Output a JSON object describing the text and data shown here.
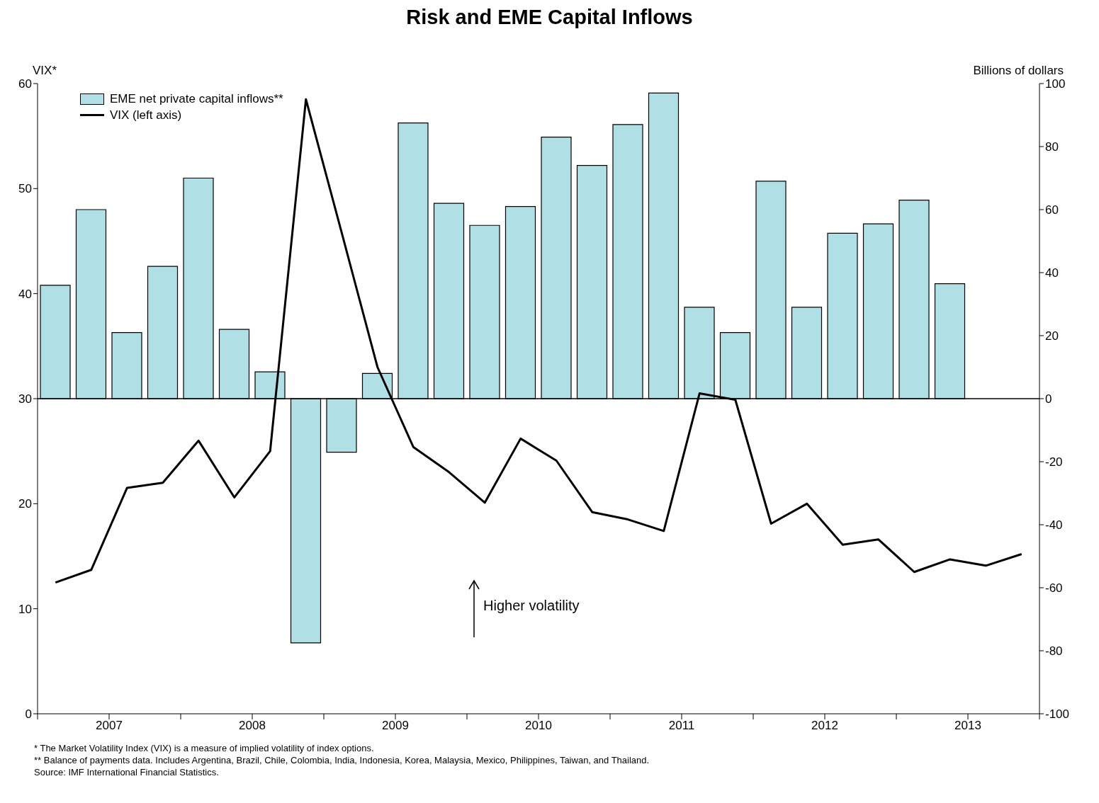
{
  "chart_data": {
    "type": "bar",
    "title": "Risk and EME Capital Inflows",
    "ylabel": "VIX*",
    "y2label": "Billions of dollars",
    "x": [
      2007.125,
      2007.375,
      2007.625,
      2007.875,
      2008.125,
      2008.375,
      2008.625,
      2008.875,
      2009.125,
      2009.375,
      2009.625,
      2009.875,
      2010.125,
      2010.375,
      2010.625,
      2010.875,
      2011.125,
      2011.375,
      2011.625,
      2011.875,
      2012.125,
      2012.375,
      2012.625,
      2012.875,
      2013.125,
      2013.375,
      2013.625,
      2013.875
    ],
    "series": [
      {
        "name": "EME net private capital inflows**",
        "axis": "y2",
        "color": "#b0e0e6",
        "values": [
          36,
          60,
          21,
          42,
          70,
          22,
          8.5,
          -77.5,
          -17,
          8,
          87.5,
          62,
          55,
          61,
          83,
          74,
          87,
          97,
          29,
          21,
          69,
          29,
          52.5,
          55.5,
          63,
          36.5,
          null,
          null
        ]
      },
      {
        "name": "VIX (left axis)",
        "type": "line",
        "color": "#000000",
        "values": [
          12.5,
          13.7,
          21.5,
          22,
          26,
          20.6,
          25,
          58.5,
          45.8,
          33,
          25.4,
          23,
          20.1,
          26.2,
          24.1,
          19.2,
          18.5,
          17.4,
          30.5,
          29.9,
          18.1,
          20,
          16.1,
          16.6,
          13.5,
          14.7,
          14.1,
          15.2
        ]
      }
    ],
    "xlim": [
      2007,
      2014
    ],
    "xticks": [
      {
        "value": 2007,
        "label": null
      },
      {
        "value": 2007.5,
        "label": "2007"
      },
      {
        "value": 2008,
        "label": null
      },
      {
        "value": 2008.5,
        "label": "2008"
      },
      {
        "value": 2009,
        "label": null
      },
      {
        "value": 2009.5,
        "label": "2009"
      },
      {
        "value": 2010,
        "label": null
      },
      {
        "value": 2010.5,
        "label": "2010"
      },
      {
        "value": 2011,
        "label": null
      },
      {
        "value": 2011.5,
        "label": "2011"
      },
      {
        "value": 2012,
        "label": null
      },
      {
        "value": 2012.5,
        "label": "2012"
      },
      {
        "value": 2013,
        "label": null
      },
      {
        "value": 2013.5,
        "label": "2013"
      },
      {
        "value": 2014,
        "label": null
      }
    ],
    "ylim": [
      0,
      60
    ],
    "yticks": [
      0,
      10,
      20,
      30,
      40,
      50,
      60
    ],
    "y2lim": [
      -100,
      100
    ],
    "y2ticks": [
      -100,
      -80,
      -60,
      -40,
      -20,
      0,
      20,
      40,
      60,
      80,
      100
    ],
    "ref_lines": [
      {
        "axis": "y2",
        "value": 0,
        "color": "#000000"
      }
    ],
    "legend": "top left",
    "marker": "none",
    "line_style": "solid",
    "annotations": [
      "Higher volatility",
      "* The Market Volatility Index (VIX) is a measure of implied volatility of index options.",
      "** Balance of payments data. Includes Argentina, Brazil, Chile, Colombia, India, Indonesia, Korea, Malaysia, Mexico, Philippines, Taiwan, and Thailand.",
      "Source: IMF International Financial Statistics."
    ]
  }
}
